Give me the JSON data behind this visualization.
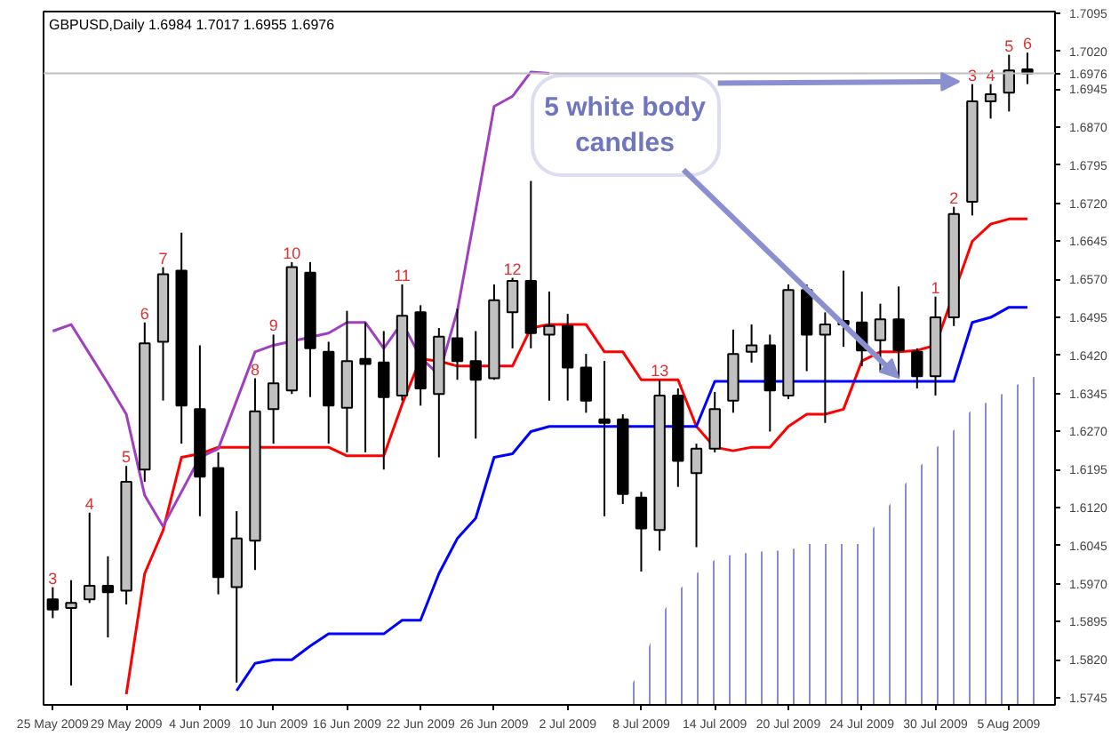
{
  "chart_data": {
    "type": "candlestick",
    "title": "GBPUSD,Daily 1.6984 1.7017 1.6955 1.6976",
    "categories": [
      "25 May 2009",
      null,
      null,
      null,
      "29 May 2009",
      null,
      null,
      null,
      "4 Jun 2009",
      null,
      null,
      null,
      "10 Jun 2009",
      null,
      null,
      null,
      "16 Jun 2009",
      null,
      null,
      null,
      "22 Jun 2009",
      null,
      null,
      null,
      "26 Jun 2009",
      null,
      null,
      null,
      "2 Jul 2009",
      null,
      null,
      null,
      "8 Jul 2009",
      null,
      null,
      null,
      "14 Jul 2009",
      null,
      null,
      null,
      "20 Jul 2009",
      null,
      null,
      null,
      "24 Jul 2009",
      null,
      null,
      null,
      "30 Jul 2009",
      null,
      null,
      null,
      "5 Aug 2009",
      null,
      null
    ],
    "ylim": [
      1.5731,
      1.7098
    ],
    "yticks": [
      1.5745,
      {
        "value": 1.582,
        "label": "1.5820"
      },
      1.5895,
      {
        "value": 1.597,
        "label": "1.5970"
      },
      1.6045,
      {
        "value": 1.612,
        "label": "1.6120"
      },
      1.6195,
      {
        "value": 1.627,
        "label": "1.6270"
      },
      1.6345,
      {
        "value": 1.642,
        "label": "1.6420"
      },
      1.6495,
      {
        "value": 1.657,
        "label": "1.6570"
      },
      1.6645,
      {
        "value": 1.672,
        "label": "1.6720"
      },
      1.6795,
      {
        "value": 1.687,
        "label": "1.6870"
      },
      1.6945,
      {
        "value": 1.702,
        "label": "1.7020"
      },
      1.7095
    ],
    "ref_lines": [
      {
        "axis": "y",
        "value": 1.6976,
        "label": "1.6976",
        "color": "#c0c0c0"
      }
    ],
    "annotations": [
      {
        "text": "5 white body candles",
        "y": 1.696
      }
    ],
    "series": [
      {
        "type": "area",
        "color": "#8080c8",
        "values": [
          null,
          null,
          null,
          null,
          null,
          null,
          null,
          null,
          null,
          null,
          null,
          null,
          null,
          null,
          null,
          null,
          null,
          null,
          null,
          null,
          null,
          null,
          null,
          null,
          null,
          null,
          null,
          null,
          null,
          null,
          null,
          1.5741,
          1.5803,
          1.5905,
          1.5956,
          1.599,
          1.6017,
          1.6028,
          1.6031,
          1.6035,
          1.6035,
          1.6048,
          1.6048,
          1.6048,
          1.6048,
          1.6099,
          1.6151,
          1.6195,
          1.6236,
          1.6273,
          1.6314,
          1.6331,
          1.6352,
          1.6375,
          1.6382
        ]
      },
      {
        "type": "line",
        "color": "#ff0000",
        "values": [
          null,
          null,
          null,
          null,
          1.5752,
          1.599,
          1.6075,
          1.6219,
          1.6226,
          1.6239,
          1.6239,
          1.6239,
          1.6239,
          1.6239,
          1.6239,
          1.6239,
          1.6222,
          1.6222,
          1.6222,
          1.6324,
          1.6413,
          1.6409,
          1.6399,
          1.6399,
          1.6399,
          1.6399,
          1.6474,
          1.6481,
          1.6481,
          1.6481,
          1.6427,
          1.6427,
          1.6372,
          1.6372,
          1.6372,
          1.628,
          1.6239,
          1.6232,
          1.6239,
          1.6239,
          1.628,
          1.6304,
          1.6304,
          1.6314,
          1.6409,
          1.6427,
          1.6427,
          1.643,
          1.644,
          null,
          1.6645,
          1.6679,
          1.6689,
          1.6689,
          null
        ]
      },
      {
        "type": "line",
        "color": "#0000ff",
        "values": [
          null,
          null,
          null,
          null,
          null,
          null,
          null,
          null,
          null,
          null,
          1.5759,
          1.5813,
          1.582,
          1.582,
          1.5847,
          1.5871,
          1.5871,
          1.5871,
          1.5871,
          1.5898,
          1.5898,
          1.599,
          1.6059,
          1.6099,
          1.6219,
          1.6226,
          1.627,
          1.628,
          1.628,
          1.628,
          1.628,
          1.628,
          1.628,
          1.628,
          1.628,
          1.628,
          1.6369,
          1.6369,
          1.6369,
          1.6369,
          1.6369,
          1.6369,
          1.6369,
          1.6369,
          1.6369,
          1.6369,
          1.6369,
          1.6369,
          1.6369,
          1.6369,
          1.6485,
          1.6495,
          1.6515,
          1.6515,
          null
        ]
      },
      {
        "type": "line",
        "color": "#a040c0",
        "values": [
          1.6468,
          1.6481,
          1.6423,
          1.6365,
          1.6304,
          1.6144,
          1.6083,
          null,
          1.6219,
          1.6236,
          1.6331,
          1.6427,
          1.644,
          null,
          null,
          1.6464,
          1.6485,
          1.6485,
          1.6434,
          1.6485,
          1.6416,
          1.6382,
          1.6508,
          1.6706,
          1.6911,
          1.6931,
          1.6979,
          1.6976,
          null,
          null,
          null,
          null,
          null,
          null,
          null,
          null,
          null,
          null,
          null,
          null,
          null,
          null,
          null,
          null,
          null,
          null,
          null,
          null,
          null,
          null,
          null,
          null,
          null,
          null,
          null
        ]
      },
      {
        "colors": [
          "#000000",
          "#c0c0c0",
          "#c0c0c0",
          "#000000",
          "#c0c0c0",
          "#c0c0c0",
          "#c0c0c0",
          "#000000",
          "#000000",
          "#000000",
          "#c0c0c0",
          "#c0c0c0",
          "#c0c0c0",
          "#c0c0c0",
          "#000000",
          "#000000",
          "#c0c0c0",
          "#000000",
          "#000000",
          "#c0c0c0",
          "#000000",
          "#c0c0c0",
          "#000000",
          "#000000",
          "#c0c0c0",
          "#c0c0c0",
          "#000000",
          "#c0c0c0",
          "#000000",
          "#000000",
          "#000000",
          "#000000",
          "#000000",
          "#c0c0c0",
          "#000000",
          "#c0c0c0",
          "#c0c0c0",
          "#c0c0c0",
          "#c0c0c0",
          "#000000",
          "#c0c0c0",
          "#000000",
          "#c0c0c0",
          "#000000",
          "#000000",
          "#c0c0c0",
          "#000000",
          "#000000",
          "#c0c0c0",
          "#c0c0c0",
          "#c0c0c0",
          "#c0c0c0",
          "#c0c0c0",
          "#000000",
          null
        ],
        "ohlc": [
          [
            1.5939,
            1.5963,
            1.5902,
            1.5919
          ],
          [
            1.5922,
            1.5977,
            1.5769,
            1.5932
          ],
          [
            1.5939,
            1.611,
            1.5932,
            1.5966
          ],
          [
            1.5966,
            1.6024,
            1.5864,
            1.5953
          ],
          [
            1.5956,
            1.6202,
            1.5929,
            1.6171
          ],
          [
            1.6195,
            1.6485,
            1.6171,
            1.6444
          ],
          [
            1.6447,
            1.6594,
            1.6331,
            1.658
          ],
          [
            1.6587,
            1.6662,
            1.6246,
            1.6321
          ],
          [
            1.6314,
            1.644,
            1.6103,
            1.6181
          ],
          [
            1.6198,
            1.6229,
            1.5949,
            1.5983
          ],
          [
            1.5963,
            1.6113,
            1.5775,
            1.6059
          ],
          [
            1.6055,
            1.6375,
            1.5997,
            1.631
          ],
          [
            1.6314,
            1.6461,
            1.6246,
            1.6365
          ],
          [
            1.6351,
            1.6604,
            1.6344,
            1.6594
          ],
          [
            1.6583,
            1.6604,
            1.6338,
            1.6434
          ],
          [
            1.6427,
            1.6447,
            1.6246,
            1.6321
          ],
          [
            1.6317,
            1.6508,
            1.6229,
            1.6409
          ],
          [
            1.6413,
            1.6485,
            1.6229,
            1.6403
          ],
          [
            1.6406,
            1.6468,
            1.6195,
            1.6338
          ],
          [
            1.6341,
            1.656,
            1.6331,
            1.6498
          ],
          [
            1.6505,
            1.6519,
            1.6321,
            1.6355
          ],
          [
            1.6344,
            1.6474,
            1.6219,
            1.6457
          ],
          [
            1.6454,
            1.6512,
            1.6372,
            1.6409
          ],
          [
            1.6409,
            1.6468,
            1.6256,
            1.6372
          ],
          [
            1.6375,
            1.656,
            1.6372,
            1.6529
          ],
          [
            1.6505,
            1.6573,
            1.6434,
            1.6567
          ],
          [
            1.6567,
            1.6764,
            1.6434,
            1.6464
          ],
          [
            1.6461,
            1.6546,
            1.6331,
            1.6478
          ],
          [
            1.6478,
            1.6502,
            1.6331,
            1.6396
          ],
          [
            1.6396,
            1.6423,
            1.6307,
            1.6331
          ],
          [
            1.6294,
            1.6409,
            1.6103,
            1.6287
          ],
          [
            1.6294,
            1.6304,
            1.6127,
            1.6147
          ],
          [
            1.614,
            1.6151,
            1.5994,
            1.6079
          ],
          [
            1.6076,
            1.6372,
            1.6035,
            1.6341
          ],
          [
            1.6341,
            1.6355,
            1.6161,
            1.6212
          ],
          [
            1.6188,
            1.6246,
            1.6042,
            1.6236
          ],
          [
            1.6236,
            1.6348,
            1.6229,
            1.6314
          ],
          [
            1.6331,
            1.6471,
            1.6307,
            1.6423
          ],
          [
            1.6427,
            1.6481,
            1.6406,
            1.644
          ],
          [
            1.644,
            1.6461,
            1.627,
            1.6351
          ],
          [
            1.6341,
            1.656,
            1.6334,
            1.6549
          ],
          [
            1.6549,
            1.656,
            1.6389,
            1.6461
          ],
          [
            1.6461,
            1.6505,
            1.6287,
            1.6481
          ],
          [
            1.6488,
            1.6587,
            1.6437,
            1.6481
          ],
          [
            1.6485,
            1.6546,
            1.6399,
            1.643
          ],
          [
            1.645,
            1.6522,
            1.6389,
            1.6491
          ],
          [
            1.6491,
            1.6556,
            1.6375,
            1.643
          ],
          [
            1.6427,
            1.6434,
            1.6355,
            1.6379
          ],
          [
            1.6379,
            1.6536,
            1.6341,
            1.6495
          ],
          [
            1.6495,
            1.6713,
            1.6478,
            1.6699
          ],
          [
            1.6723,
            1.6955,
            1.6696,
            1.6921
          ],
          [
            1.6921,
            1.6955,
            1.6887,
            1.6935
          ],
          [
            1.6938,
            1.7013,
            1.6901,
            1.6982
          ],
          [
            1.6984,
            1.7017,
            1.6955,
            1.6976
          ],
          null
        ],
        "value_labels": [
          "3",
          null,
          "4",
          null,
          "5",
          "6",
          "7",
          null,
          null,
          null,
          null,
          "8",
          "9",
          "10",
          null,
          null,
          null,
          null,
          null,
          "11",
          null,
          null,
          null,
          null,
          null,
          "12",
          null,
          null,
          null,
          null,
          null,
          null,
          null,
          "13",
          null,
          null,
          null,
          null,
          null,
          null,
          null,
          null,
          null,
          null,
          null,
          null,
          null,
          null,
          "1",
          "2",
          "3",
          "4",
          "5",
          "6",
          null
        ]
      }
    ]
  }
}
